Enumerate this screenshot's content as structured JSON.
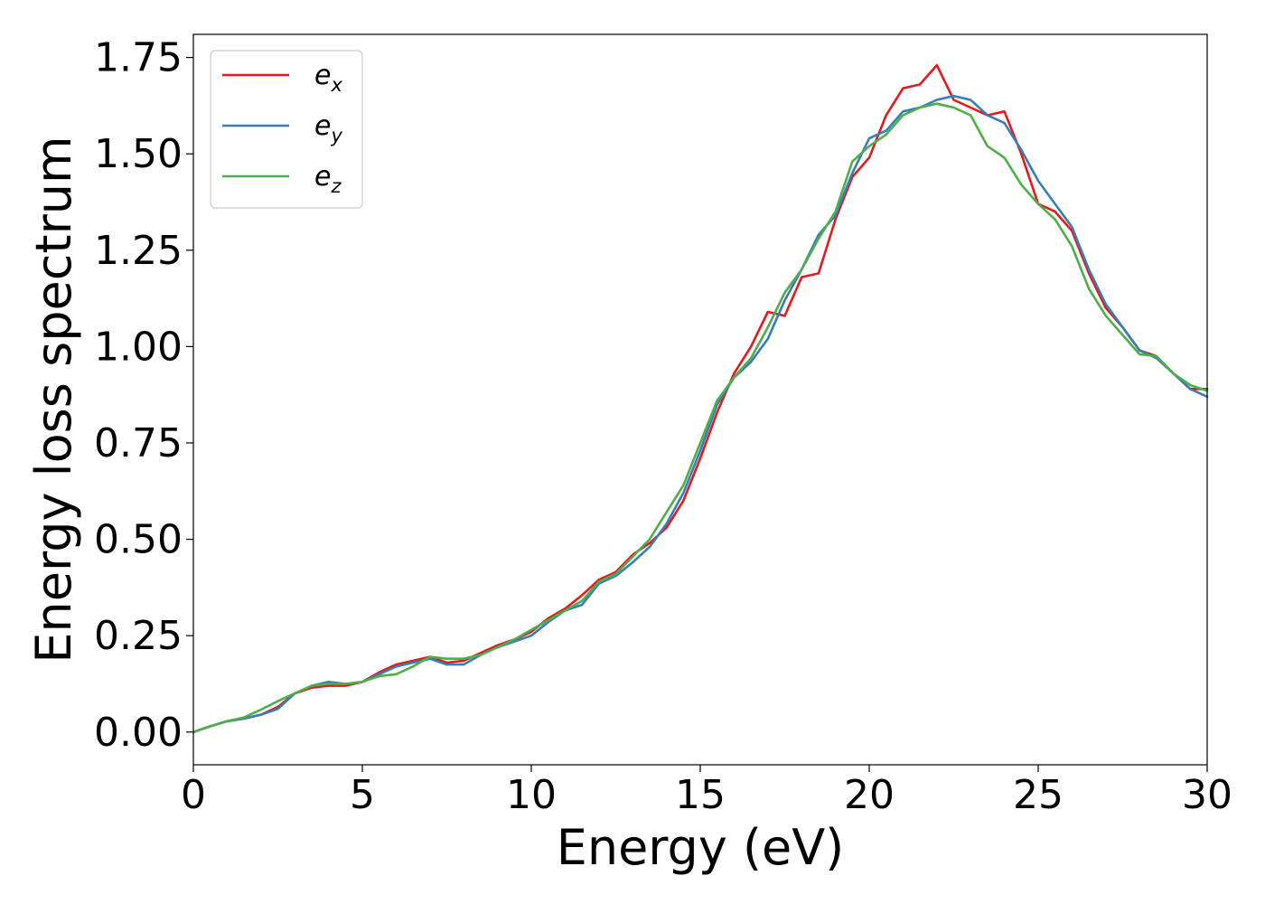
{
  "chart_data": {
    "type": "line",
    "title": "",
    "xlabel": "Energy (eV)",
    "ylabel": "Energy loss spectrum",
    "xlim": [
      0,
      30
    ],
    "ylim": [
      -0.085,
      1.81
    ],
    "xticks": [
      0,
      5,
      10,
      15,
      20,
      25,
      30
    ],
    "xtick_labels": [
      "0",
      "5",
      "10",
      "15",
      "20",
      "25",
      "30"
    ],
    "yticks": [
      0,
      0.25,
      0.5,
      0.75,
      1.0,
      1.25,
      1.5,
      1.75
    ],
    "ytick_labels": [
      "0.00",
      "0.25",
      "0.50",
      "0.75",
      "1.00",
      "1.25",
      "1.50",
      "1.75"
    ],
    "grid": false,
    "legend_position": "top-left",
    "series": [
      {
        "name": "e",
        "subscript": "x",
        "color": "#e41a1c",
        "x": [
          0,
          0.5,
          1,
          1.5,
          2,
          2.5,
          3,
          3.5,
          4,
          4.5,
          5,
          5.5,
          6,
          6.5,
          7,
          7.5,
          8,
          8.5,
          9,
          9.5,
          10,
          10.5,
          11,
          11.5,
          12,
          12.5,
          13,
          13.5,
          14,
          14.5,
          15,
          15.5,
          16,
          16.5,
          17,
          17.5,
          18,
          18.5,
          19,
          19.5,
          20,
          20.5,
          21,
          21.5,
          22,
          22.5,
          23,
          23.5,
          24,
          24.5,
          25,
          25.5,
          26,
          26.5,
          27,
          27.5,
          28,
          28.5,
          29,
          29.5,
          30
        ],
        "y": [
          0.0,
          0.015,
          0.028,
          0.035,
          0.045,
          0.065,
          0.1,
          0.115,
          0.12,
          0.12,
          0.13,
          0.155,
          0.175,
          0.185,
          0.195,
          0.18,
          0.185,
          0.205,
          0.225,
          0.24,
          0.26,
          0.295,
          0.32,
          0.355,
          0.395,
          0.415,
          0.46,
          0.49,
          0.53,
          0.6,
          0.71,
          0.83,
          0.93,
          1.0,
          1.09,
          1.08,
          1.18,
          1.19,
          1.33,
          1.44,
          1.49,
          1.6,
          1.67,
          1.68,
          1.73,
          1.64,
          1.62,
          1.6,
          1.61,
          1.5,
          1.37,
          1.35,
          1.3,
          1.19,
          1.1,
          1.05,
          0.99,
          0.975,
          0.93,
          0.89,
          0.89
        ]
      },
      {
        "name": "e",
        "subscript": "y",
        "color": "#377eb8",
        "x": [
          0,
          0.5,
          1,
          1.5,
          2,
          2.5,
          3,
          3.5,
          4,
          4.5,
          5,
          5.5,
          6,
          6.5,
          7,
          7.5,
          8,
          8.5,
          9,
          9.5,
          10,
          10.5,
          11,
          11.5,
          12,
          12.5,
          13,
          13.5,
          14,
          14.5,
          15,
          15.5,
          16,
          16.5,
          17,
          17.5,
          18,
          18.5,
          19,
          19.5,
          20,
          20.5,
          21,
          21.5,
          22,
          22.5,
          23,
          23.5,
          24,
          24.5,
          25,
          25.5,
          26,
          26.5,
          27,
          27.5,
          28,
          28.5,
          29,
          29.5,
          30
        ],
        "y": [
          0.0,
          0.015,
          0.028,
          0.035,
          0.045,
          0.06,
          0.1,
          0.12,
          0.13,
          0.125,
          0.13,
          0.15,
          0.17,
          0.18,
          0.19,
          0.175,
          0.175,
          0.2,
          0.22,
          0.235,
          0.25,
          0.285,
          0.315,
          0.33,
          0.385,
          0.405,
          0.44,
          0.48,
          0.54,
          0.62,
          0.73,
          0.85,
          0.92,
          0.96,
          1.02,
          1.12,
          1.2,
          1.29,
          1.34,
          1.45,
          1.54,
          1.56,
          1.61,
          1.62,
          1.64,
          1.65,
          1.64,
          1.6,
          1.58,
          1.51,
          1.43,
          1.37,
          1.31,
          1.2,
          1.11,
          1.05,
          0.99,
          0.97,
          0.93,
          0.89,
          0.87
        ]
      },
      {
        "name": "e",
        "subscript": "z",
        "color": "#4daf4a",
        "x": [
          0,
          0.5,
          1,
          1.5,
          2,
          2.5,
          3,
          3.5,
          4,
          4.5,
          5,
          5.5,
          6,
          6.5,
          7,
          7.5,
          8,
          8.5,
          9,
          9.5,
          10,
          10.5,
          11,
          11.5,
          12,
          12.5,
          13,
          13.5,
          14,
          14.5,
          15,
          15.5,
          16,
          16.5,
          17,
          17.5,
          18,
          18.5,
          19,
          19.5,
          20,
          20.5,
          21,
          21.5,
          22,
          22.5,
          23,
          23.5,
          24,
          24.5,
          25,
          25.5,
          26,
          26.5,
          27,
          27.5,
          28,
          28.5,
          29,
          29.5,
          30
        ],
        "y": [
          0.0,
          0.015,
          0.028,
          0.038,
          0.058,
          0.08,
          0.1,
          0.12,
          0.125,
          0.125,
          0.13,
          0.145,
          0.15,
          0.17,
          0.195,
          0.19,
          0.19,
          0.2,
          0.22,
          0.24,
          0.265,
          0.29,
          0.315,
          0.34,
          0.39,
          0.41,
          0.455,
          0.5,
          0.57,
          0.64,
          0.75,
          0.86,
          0.92,
          0.97,
          1.05,
          1.14,
          1.2,
          1.28,
          1.35,
          1.48,
          1.52,
          1.55,
          1.6,
          1.62,
          1.63,
          1.62,
          1.6,
          1.52,
          1.49,
          1.42,
          1.37,
          1.33,
          1.26,
          1.15,
          1.08,
          1.03,
          0.98,
          0.975,
          0.93,
          0.9,
          0.885
        ]
      }
    ]
  }
}
